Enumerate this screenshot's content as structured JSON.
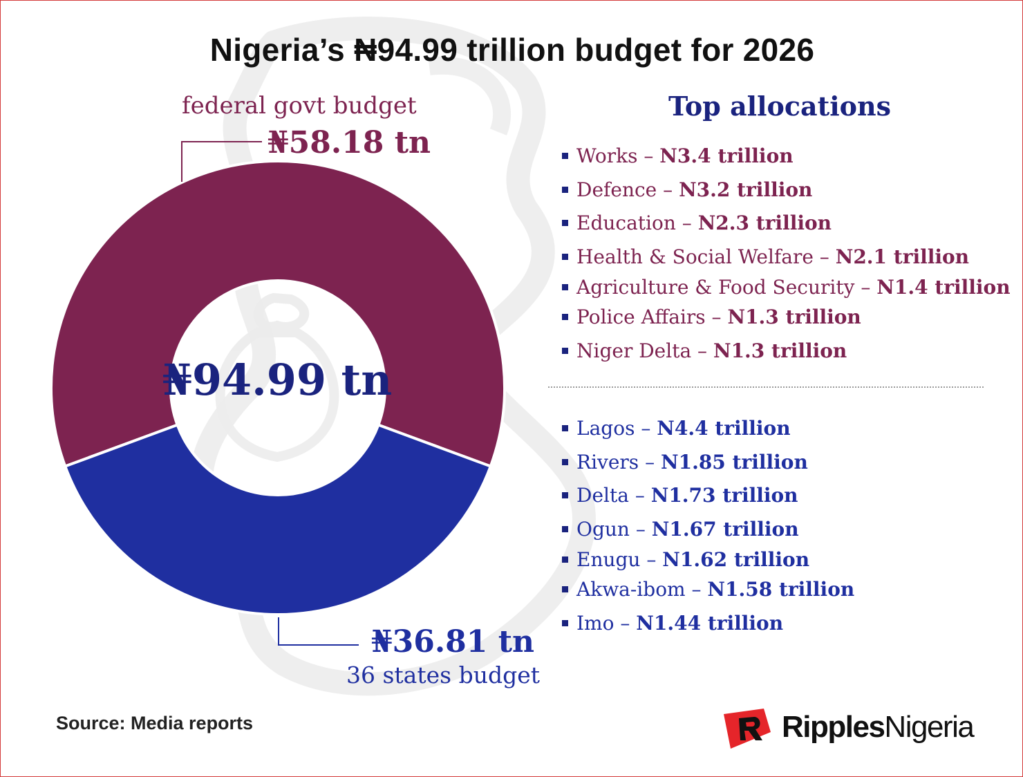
{
  "title": "Nigeria’s ₦94.99 trillion budget for 2026",
  "chart_data": {
    "type": "pie",
    "categories": [
      "federal govt budget",
      "36 states budget"
    ],
    "values": [
      58.18,
      36.81
    ],
    "value_labels": [
      "₦58.18 tn",
      "₦36.81 tn"
    ],
    "center_label": "₦94.99 tn",
    "colors": [
      "#7d2350",
      "#1f2fa0"
    ]
  },
  "allocations": {
    "title": "Top allocations",
    "federal": [
      {
        "name": "Works",
        "amount": "N3.4 trillion"
      },
      {
        "name": "Defence",
        "amount": "N3.2 trillion"
      },
      {
        "name": "Education",
        "amount": "N2.3 trillion"
      },
      {
        "name": "Health & Social Welfare",
        "amount": "N2.1 trillion"
      },
      {
        "name": "Agriculture & Food Security",
        "amount": "N1.4 trillion"
      },
      {
        "name": "Police Affairs",
        "amount": "N1.3 trillion"
      },
      {
        "name": "Niger Delta",
        "amount": "N1.3 trillion"
      }
    ],
    "states": [
      {
        "name": "Lagos",
        "amount": "N4.4 trillion"
      },
      {
        "name": "Rivers",
        "amount": "N1.85 trillion"
      },
      {
        "name": "Delta",
        "amount": "N1.73 trillion"
      },
      {
        "name": "Ogun",
        "amount": "N1.67 trillion"
      },
      {
        "name": "Enugu",
        "amount": "N1.62 trillion"
      },
      {
        "name": "Akwa-ibom",
        "amount": "N1.58 trillion"
      },
      {
        "name": "Imo",
        "amount": "N1.44 trillion"
      }
    ]
  },
  "source": "Source: Media reports",
  "logo": {
    "part1": "Ripples",
    "part2": "Nigeria"
  },
  "colors": {
    "federal": "#7d2350",
    "states": "#1f2fa0",
    "title_blue": "#1a237e",
    "logo_red": "#e5252a"
  }
}
